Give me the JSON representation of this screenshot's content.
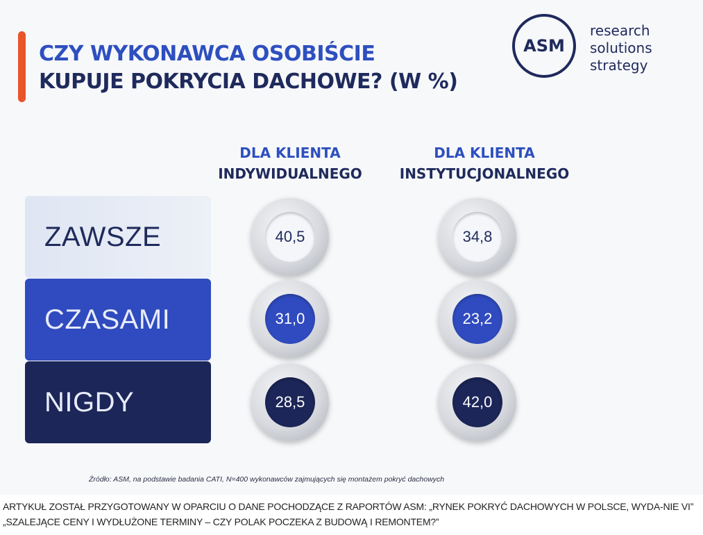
{
  "title": {
    "line1": "CZY WYKONAWCA OSOBIŚCIE",
    "line2": "KUPUJE POKRYCIA DACHOWE? (W %)"
  },
  "logo": {
    "mark": "ASM",
    "tagline": [
      "research",
      "solutions",
      "strategy"
    ]
  },
  "colors": {
    "accent": "#e8552a",
    "title_blue": "#2e4fbf",
    "navy": "#1f2a5c",
    "zawsze": "#e6ecf5",
    "czasami": "#2f4bbf",
    "nigdy": "#1c2658"
  },
  "chart_data": {
    "type": "table",
    "title": "CZY WYKONAWCA OSOBIŚCIE KUPUJE POKRYCIA DACHOWE? (W %)",
    "columns": [
      {
        "line1": "DLA KLIENTA",
        "line2": "INDYWIDUALNEGO"
      },
      {
        "line1": "DLA KLIENTA",
        "line2": "INSTYTUCJONALNEGO"
      }
    ],
    "categories": [
      "ZAWSZE",
      "CZASAMI",
      "NIGDY"
    ],
    "series": [
      {
        "name": "DLA KLIENTA INDYWIDUALNEGO",
        "values": [
          40.5,
          31.0,
          28.5
        ],
        "labels": [
          "40,5",
          "31,0",
          "28,5"
        ]
      },
      {
        "name": "DLA KLIENTA INSTYTUCJONALNEGO",
        "values": [
          34.8,
          23.2,
          42.0
        ],
        "labels": [
          "34,8",
          "23,2",
          "42,0"
        ]
      }
    ]
  },
  "source_note": "Źródło: ASM, na podstawie badania CATI, N=400 wykonawców zajmujących się montażem pokryć dachowych",
  "caption": "ARTYKUŁ ZOSTAŁ PRZYGOTOWANY W OPARCIU O DANE POCHODZĄCE Z RAPORTÓW ASM: „RYNEK POKRYĆ DACHOWYCH W POLSCE, WYDA-NIE VI” „SZALEJĄCE CENY I WYDŁUŻONE TERMINY – CZY POLAK POCZEKA Z BUDOWĄ I REMONTEM?”"
}
